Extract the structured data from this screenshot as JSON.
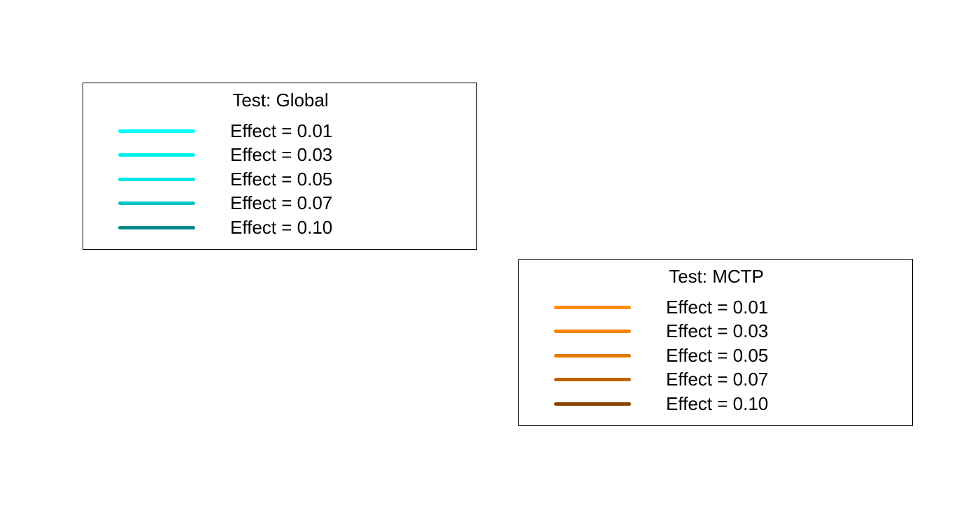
{
  "chart_data": [
    {
      "type": "line",
      "legend_title": "Test: Global",
      "series": [
        {
          "name": "Effect = 0.01",
          "color": "#00FFFF"
        },
        {
          "name": "Effect = 0.03",
          "color": "#00F0F0"
        },
        {
          "name": "Effect = 0.05",
          "color": "#00E5E5"
        },
        {
          "name": "Effect = 0.07",
          "color": "#00C5C5"
        },
        {
          "name": "Effect = 0.10",
          "color": "#008B8B"
        }
      ]
    },
    {
      "type": "line",
      "legend_title": "Test: MCTP",
      "series": [
        {
          "name": "Effect = 0.01",
          "color": "#FF8C00"
        },
        {
          "name": "Effect = 0.03",
          "color": "#F58400"
        },
        {
          "name": "Effect = 0.05",
          "color": "#E57A00"
        },
        {
          "name": "Effect = 0.07",
          "color": "#C06200"
        },
        {
          "name": "Effect = 0.10",
          "color": "#8B4500"
        }
      ]
    }
  ]
}
